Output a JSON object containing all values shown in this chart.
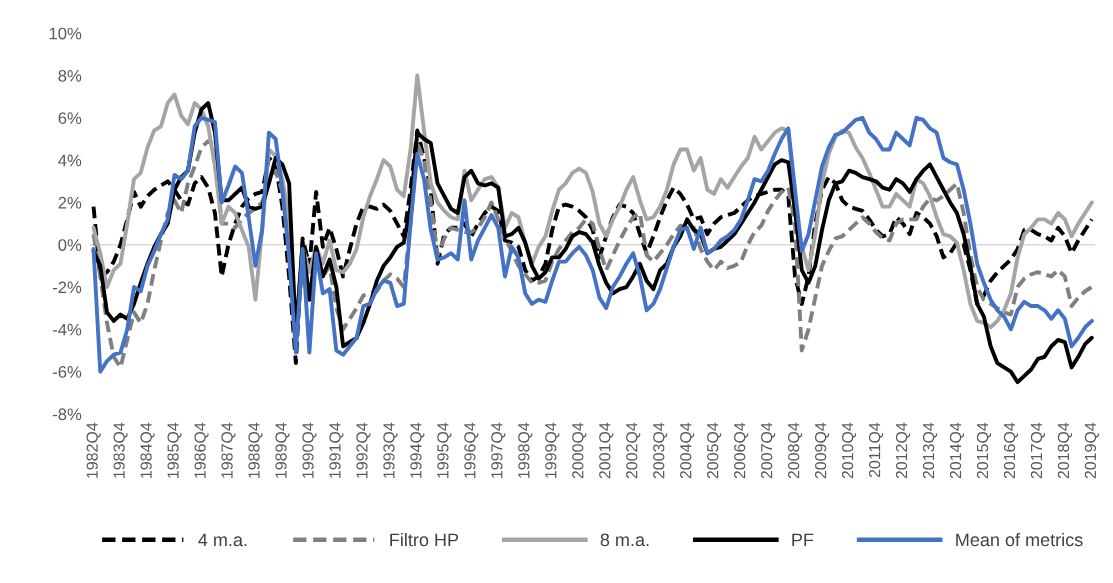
{
  "chart_data": {
    "type": "line",
    "categories": [
      "1982Q4",
      null,
      null,
      null,
      "1983Q4",
      null,
      null,
      null,
      "1984Q4",
      null,
      null,
      null,
      "1985Q4",
      null,
      null,
      null,
      "1986Q4",
      null,
      null,
      null,
      "1987Q4",
      null,
      null,
      null,
      "1988Q4",
      null,
      null,
      null,
      "1989Q4",
      null,
      null,
      null,
      "1990Q4",
      null,
      null,
      null,
      "1991Q4",
      null,
      null,
      null,
      "1992Q4",
      null,
      null,
      null,
      "1993Q4",
      null,
      null,
      null,
      "1994Q4",
      null,
      null,
      null,
      "1995Q4",
      null,
      null,
      null,
      "1996Q4",
      null,
      null,
      null,
      "1997Q4",
      null,
      null,
      null,
      "1998Q4",
      null,
      null,
      null,
      "1999Q4",
      null,
      null,
      null,
      "2000Q4",
      null,
      null,
      null,
      "2001Q4",
      null,
      null,
      null,
      "2002Q4",
      null,
      null,
      null,
      "2003Q4",
      null,
      null,
      null,
      "2004Q4",
      null,
      null,
      null,
      "2005Q4",
      null,
      null,
      null,
      "2006Q4",
      null,
      null,
      null,
      "2007Q4",
      null,
      null,
      null,
      "2008Q4",
      null,
      null,
      null,
      "2009Q4",
      null,
      null,
      null,
      "2010Q4",
      null,
      null,
      null,
      "2011Q4",
      null,
      null,
      null,
      "2012Q4",
      null,
      null,
      null,
      "2013Q4",
      null,
      null,
      null,
      "2014Q4",
      null,
      null,
      null,
      "2015Q4",
      null,
      null,
      null,
      "2016Q4",
      null,
      null,
      null,
      "2017Q4",
      null,
      null,
      null,
      "2018Q4",
      null,
      null,
      null,
      "2019Q4"
    ],
    "series": [
      {
        "name": "4 m.a.",
        "color": "#000000",
        "line_style": "dashed",
        "values": [
          1.8,
          -1.5,
          -1.3,
          -0.8,
          0.0,
          1.2,
          2.5,
          1.8,
          2.3,
          2.6,
          2.8,
          3.0,
          2.6,
          2.1,
          1.9,
          2.9,
          3.2,
          2.7,
          1.5,
          -1.5,
          0.0,
          1.0,
          1.8,
          2.2,
          2.4,
          2.5,
          4.1,
          3.8,
          1.8,
          -1.5,
          -5.6,
          0.3,
          -1.0,
          2.5,
          -0.1,
          0.8,
          -0.2,
          -1.5,
          -0.2,
          1.0,
          1.8,
          1.8,
          1.7,
          1.9,
          1.6,
          1.0,
          0.4,
          2.6,
          5.4,
          4.1,
          2.6,
          -0.9,
          0.5,
          0.8,
          0.8,
          1.0,
          0.4,
          1.0,
          1.5,
          1.8,
          1.6,
          0.2,
          0.1,
          -0.1,
          -1.2,
          -1.7,
          -1.5,
          -0.9,
          0.7,
          1.8,
          1.9,
          1.8,
          1.6,
          1.3,
          0.7,
          -0.6,
          0.4,
          1.3,
          1.9,
          1.8,
          1.5,
          0.5,
          -0.4,
          0.4,
          1.3,
          2.1,
          2.7,
          2.4,
          1.9,
          1.2,
          1.3,
          0.5,
          1.0,
          1.3,
          1.4,
          1.5,
          1.8,
          2.1,
          2.3,
          2.4,
          2.5,
          2.6,
          2.6,
          2.3,
          -1.5,
          -2.8,
          -1.5,
          1.0,
          2.6,
          3.2,
          2.9,
          2.1,
          1.8,
          1.7,
          1.6,
          1.2,
          0.7,
          0.4,
          0.5,
          1.3,
          1.0,
          0.5,
          1.5,
          1.3,
          1.0,
          0.4,
          -0.6,
          -0.4,
          0.1,
          0.0,
          -1.2,
          -2.8,
          -2.4,
          -1.7,
          -1.3,
          -1.0,
          -0.7,
          -0.2,
          0.7,
          0.7,
          0.5,
          0.4,
          0.2,
          0.8,
          0.4,
          -0.4,
          0.2,
          0.7,
          1.2
        ]
      },
      {
        "name": "Filtro HP",
        "color": "#808080",
        "line_style": "dashed",
        "values": [
          0.5,
          -1.5,
          -3.7,
          -5.3,
          -5.8,
          -4.5,
          -3.2,
          -3.7,
          -2.8,
          -1.2,
          0.2,
          1.5,
          2.1,
          1.5,
          2.9,
          3.7,
          4.6,
          4.9,
          4.7,
          1.0,
          1.0,
          0.8,
          1.2,
          1.5,
          1.7,
          2.0,
          3.0,
          3.5,
          2.5,
          0.0,
          -4.5,
          -1.0,
          -2.5,
          -0.5,
          -1.5,
          -1.0,
          -3.0,
          -4.0,
          -3.5,
          -3.0,
          -2.4,
          -2.3,
          -2.2,
          -1.7,
          -1.4,
          -1.6,
          -2.0,
          1.0,
          4.8,
          4.0,
          2.0,
          -0.5,
          0.3,
          0.8,
          0.7,
          0.6,
          0.6,
          0.8,
          1.3,
          2.0,
          1.2,
          0.3,
          -0.3,
          -1.0,
          -1.4,
          -1.8,
          -1.8,
          -1.7,
          -0.8,
          -0.2,
          0.2,
          0.6,
          0.8,
          1.2,
          1.0,
          -0.2,
          -1.2,
          -0.5,
          0.2,
          0.8,
          1.3,
          1.5,
          -0.5,
          -0.8,
          -0.4,
          0.0,
          0.5,
          0.9,
          0.8,
          0.8,
          -0.2,
          -0.8,
          -1.2,
          -0.8,
          -1.1,
          -1.0,
          -0.8,
          0.0,
          0.6,
          0.9,
          1.6,
          2.1,
          2.5,
          2.7,
          1.0,
          -5.0,
          -4.0,
          -2.5,
          -1.0,
          -0.3,
          0.3,
          0.4,
          0.7,
          1.0,
          1.3,
          1.0,
          0.6,
          0.3,
          0.2,
          1.0,
          1.2,
          1.2,
          1.2,
          1.8,
          2.2,
          2.1,
          2.3,
          2.6,
          2.9,
          1.5,
          -0.5,
          -2.0,
          -2.6,
          -2.8,
          -3.0,
          -3.2,
          -3.3,
          -2.0,
          -1.6,
          -1.4,
          -1.3,
          -1.4,
          -1.5,
          -1.2,
          -1.5,
          -2.9,
          -2.5,
          -2.2,
          -2.0
        ]
      },
      {
        "name": "8 m.a.",
        "color": "#a5a5a5",
        "line_style": "solid",
        "values": [
          0.8,
          -0.4,
          -2.0,
          -1.2,
          -0.9,
          1.0,
          3.1,
          3.4,
          4.6,
          5.4,
          5.6,
          6.7,
          7.1,
          6.1,
          5.7,
          6.7,
          6.4,
          5.6,
          3.7,
          1.0,
          1.8,
          1.5,
          0.7,
          -0.1,
          -2.6,
          0.7,
          4.5,
          4.2,
          3.1,
          1.3,
          -4.0,
          -0.1,
          -1.3,
          -0.1,
          -0.9,
          0.2,
          -1.2,
          -1.3,
          -0.9,
          -0.2,
          1.3,
          2.3,
          3.1,
          4.0,
          3.7,
          2.6,
          2.3,
          4.5,
          8.0,
          5.4,
          2.9,
          2.0,
          1.6,
          1.3,
          1.2,
          3.5,
          2.1,
          2.6,
          3.1,
          3.2,
          2.7,
          0.8,
          1.5,
          1.3,
          0.1,
          -0.9,
          -0.1,
          0.4,
          1.6,
          2.6,
          2.9,
          3.4,
          3.6,
          3.4,
          2.5,
          1.0,
          0.4,
          1.2,
          1.8,
          2.6,
          3.2,
          2.1,
          1.2,
          1.3,
          1.8,
          2.6,
          3.8,
          4.5,
          4.5,
          3.5,
          4.1,
          2.6,
          2.4,
          3.1,
          2.7,
          3.2,
          3.7,
          4.1,
          5.1,
          4.5,
          4.9,
          5.3,
          5.5,
          5.4,
          2.0,
          -0.1,
          -1.2,
          0.5,
          2.9,
          4.3,
          5.1,
          5.4,
          5.3,
          4.6,
          4.1,
          3.4,
          2.6,
          1.8,
          1.8,
          2.4,
          2.1,
          1.8,
          3.1,
          2.9,
          2.3,
          1.3,
          0.5,
          0.4,
          0.1,
          -1.2,
          -2.8,
          -3.6,
          -3.7,
          -3.9,
          -3.6,
          -3.1,
          -2.3,
          -0.6,
          0.5,
          0.8,
          1.2,
          1.2,
          1.0,
          1.5,
          1.2,
          0.4,
          1.0,
          1.5,
          2.0
        ]
      },
      {
        "name": "PF",
        "color": "#000000",
        "line_style": "solid",
        "values": [
          -0.3,
          -1.0,
          -3.2,
          -3.6,
          -3.3,
          -3.5,
          -2.8,
          -1.8,
          -0.9,
          -0.1,
          0.5,
          1.0,
          2.6,
          3.2,
          3.5,
          5.3,
          6.4,
          6.7,
          5.3,
          2.1,
          2.1,
          2.4,
          2.7,
          1.8,
          1.7,
          1.8,
          2.9,
          4.1,
          3.8,
          2.9,
          -4.3,
          0.1,
          -2.6,
          -0.1,
          -1.5,
          -0.7,
          -2.0,
          -4.8,
          -4.6,
          -4.4,
          -3.7,
          -2.8,
          -1.7,
          -1.0,
          -0.6,
          -0.1,
          0.1,
          1.8,
          5.3,
          5.0,
          4.8,
          2.9,
          2.3,
          1.7,
          1.5,
          3.2,
          3.5,
          2.9,
          2.8,
          2.9,
          2.7,
          0.4,
          0.5,
          0.8,
          0.1,
          -1.0,
          -1.6,
          -1.3,
          -0.6,
          -0.6,
          -0.2,
          0.4,
          0.6,
          0.5,
          0.1,
          -1.0,
          -1.8,
          -2.3,
          -2.1,
          -2.0,
          -1.5,
          -0.9,
          -1.7,
          -2.1,
          -1.2,
          -0.9,
          -0.1,
          0.4,
          1.2,
          0.7,
          0.5,
          -0.4,
          -0.2,
          -0.1,
          0.2,
          0.5,
          1.0,
          1.5,
          2.0,
          2.6,
          3.2,
          3.8,
          4.0,
          3.9,
          1.6,
          -1.2,
          -1.8,
          -1.0,
          0.7,
          2.1,
          2.9,
          3.0,
          3.5,
          3.4,
          3.2,
          3.1,
          3.0,
          2.7,
          2.6,
          3.1,
          2.9,
          2.5,
          3.1,
          3.5,
          3.8,
          3.2,
          2.6,
          2.0,
          1.5,
          0.5,
          -1.0,
          -2.8,
          -3.4,
          -4.8,
          -5.6,
          -5.8,
          -6.0,
          -6.5,
          -6.2,
          -5.9,
          -5.4,
          -5.3,
          -4.8,
          -4.5,
          -4.6,
          -5.8,
          -5.3,
          -4.7,
          -4.4
        ]
      },
      {
        "name": "Mean of metrics",
        "color": "#4472c4",
        "line_style": "solid",
        "values": [
          -0.2,
          -6.0,
          -5.5,
          -5.2,
          -5.1,
          -4.0,
          -2.0,
          -2.2,
          -1.0,
          -0.3,
          0.5,
          1.2,
          3.3,
          3.1,
          3.5,
          5.6,
          6.0,
          5.9,
          5.8,
          2.0,
          2.8,
          3.7,
          3.4,
          1.3,
          -1.0,
          0.7,
          5.3,
          5.0,
          2.6,
          -0.6,
          -5.1,
          -0.2,
          -5.1,
          -0.4,
          -2.3,
          -2.1,
          -5.0,
          -5.2,
          -4.8,
          -4.4,
          -2.9,
          -2.8,
          -2.1,
          -1.7,
          -1.8,
          -2.9,
          -2.8,
          1.0,
          4.3,
          3.1,
          0.7,
          -0.7,
          -0.6,
          -0.4,
          -0.7,
          2.1,
          -0.7,
          0.2,
          0.8,
          1.4,
          0.8,
          -1.5,
          -0.1,
          -0.6,
          -2.3,
          -2.8,
          -2.6,
          -2.7,
          -1.7,
          -0.8,
          -0.8,
          -0.4,
          -0.1,
          -0.5,
          -1.2,
          -2.5,
          -3.0,
          -2.0,
          -1.5,
          -0.9,
          -0.4,
          -1.5,
          -3.1,
          -2.8,
          -2.1,
          -1.1,
          -0.1,
          0.7,
          0.8,
          -0.2,
          0.8,
          -0.4,
          -0.2,
          0.2,
          0.4,
          0.7,
          1.2,
          2.1,
          3.1,
          3.0,
          3.5,
          4.3,
          5.0,
          5.5,
          2.6,
          -0.3,
          0.5,
          2.1,
          3.7,
          4.6,
          5.2,
          5.3,
          5.6,
          5.9,
          6.0,
          5.3,
          5.0,
          4.5,
          4.5,
          5.3,
          5.0,
          4.7,
          6.0,
          5.9,
          5.5,
          5.3,
          4.1,
          3.9,
          3.8,
          2.6,
          1.0,
          -0.9,
          -1.8,
          -2.6,
          -3.1,
          -3.4,
          -4.0,
          -3.1,
          -2.7,
          -2.9,
          -2.9,
          -3.1,
          -3.5,
          -3.1,
          -3.5,
          -4.8,
          -4.4,
          -3.9,
          -3.6
        ]
      }
    ],
    "ylim": [
      -8,
      10
    ],
    "yticks": [
      {
        "value": -8,
        "label": "-8%"
      },
      {
        "value": -6,
        "label": "-6%"
      },
      {
        "value": -4,
        "label": "-4%"
      },
      {
        "value": -2,
        "label": "-2%"
      },
      {
        "value": 0,
        "label": "0%"
      },
      {
        "value": 2,
        "label": "2%"
      },
      {
        "value": 4,
        "label": "4%"
      },
      {
        "value": 6,
        "label": "6%"
      },
      {
        "value": 8,
        "label": "8%"
      },
      {
        "value": 10,
        "label": "10%"
      }
    ],
    "ref_lines": [
      {
        "axis": "y",
        "value": 0,
        "color": "#d9d9d9"
      }
    ],
    "grid": false,
    "legend": "bottom"
  }
}
